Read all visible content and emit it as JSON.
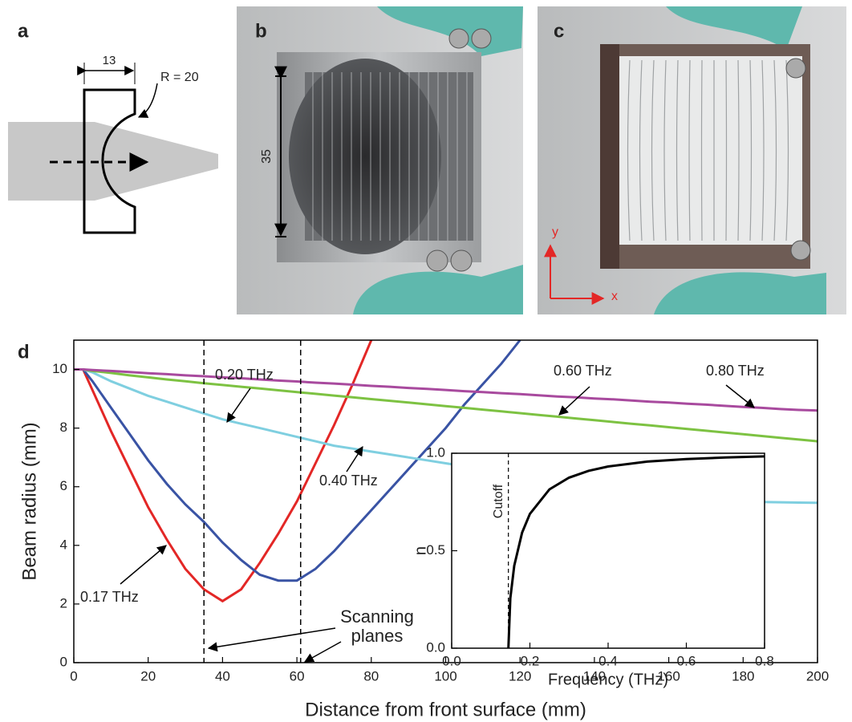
{
  "panel_labels": [
    "a",
    "b",
    "c",
    "d"
  ],
  "diagram": {
    "width_label": "13",
    "radius_label": "R = 20"
  },
  "photo_b": {
    "height_label": "35"
  },
  "photo_c": {
    "y_label": "y",
    "x_label": "x"
  },
  "chart_data": [
    {
      "type": "line",
      "xlabel": "Distance from front surface (mm)",
      "ylabel": "Beam radius (mm)",
      "xlim": [
        0,
        200
      ],
      "ylim": [
        0,
        11
      ],
      "xticks": [
        0,
        20,
        40,
        60,
        80,
        100,
        120,
        140,
        160,
        180,
        200
      ],
      "yticks": [
        0,
        2,
        4,
        6,
        8,
        10
      ],
      "x": [
        0,
        2.5,
        5,
        10,
        15,
        20,
        25,
        30,
        35,
        40,
        45,
        50,
        55,
        60,
        65,
        70,
        75,
        80,
        85,
        90,
        95,
        100,
        105,
        110,
        115,
        120,
        125,
        130,
        135,
        140,
        145,
        150,
        155,
        160,
        165,
        170,
        175,
        180,
        185,
        190,
        195,
        200
      ],
      "series": [
        {
          "name": "0.17 THz",
          "color": "#e32726",
          "values": [
            10,
            10,
            9.3,
            7.9,
            6.6,
            5.3,
            4.2,
            3.2,
            2.5,
            2.1,
            2.5,
            3.4,
            4.4,
            5.5,
            6.8,
            8.1,
            9.5,
            11.0,
            null,
            null,
            null,
            null,
            null,
            null,
            null,
            null,
            null,
            null,
            null,
            null,
            null,
            null,
            null,
            null,
            null,
            null,
            null,
            null,
            null,
            null,
            null,
            null
          ]
        },
        {
          "name": "0.20 THz",
          "color": "#3953a4",
          "values": [
            10,
            10,
            9.6,
            8.7,
            7.8,
            6.9,
            6.1,
            5.4,
            4.8,
            4.1,
            3.5,
            3.0,
            2.8,
            2.8,
            3.2,
            3.8,
            4.5,
            5.2,
            5.9,
            6.6,
            7.3,
            8.0,
            8.8,
            9.5,
            10.2,
            11.0,
            null,
            null,
            null,
            null,
            null,
            null,
            null,
            null,
            null,
            null,
            null,
            null,
            null,
            null,
            null,
            null
          ]
        },
        {
          "name": "0.40 THz",
          "color": "#7fcfe0",
          "values": [
            10,
            10,
            9.9,
            9.6,
            9.35,
            9.1,
            8.9,
            8.7,
            8.5,
            8.3,
            8.15,
            8.0,
            7.85,
            7.7,
            7.55,
            7.4,
            7.3,
            7.2,
            7.1,
            7.0,
            6.9,
            6.8,
            6.7,
            6.6,
            6.5,
            6.4,
            6.3,
            6.2,
            6.1,
            6.0,
            5.9,
            5.85,
            5.8,
            5.7,
            5.65,
            5.6,
            5.55,
            5.5,
            5.48,
            5.47,
            5.46,
            5.45
          ]
        },
        {
          "name": "0.60 THz",
          "color": "#7dc242",
          "values": [
            10,
            10,
            9.95,
            9.88,
            9.8,
            9.73,
            9.66,
            9.6,
            9.53,
            9.47,
            9.41,
            9.35,
            9.29,
            9.23,
            9.17,
            9.11,
            9.05,
            8.99,
            8.93,
            8.87,
            8.81,
            8.75,
            8.69,
            8.63,
            8.57,
            8.51,
            8.45,
            8.39,
            8.33,
            8.27,
            8.21,
            8.15,
            8.09,
            8.03,
            7.97,
            7.91,
            7.85,
            7.79,
            7.73,
            7.67,
            7.61,
            7.55
          ]
        },
        {
          "name": "0.80 THz",
          "color": "#a84a9e",
          "values": [
            10,
            10,
            9.98,
            9.95,
            9.91,
            9.87,
            9.84,
            9.8,
            9.77,
            9.73,
            9.7,
            9.66,
            9.62,
            9.59,
            9.55,
            9.52,
            9.48,
            9.44,
            9.41,
            9.37,
            9.34,
            9.3,
            9.26,
            9.23,
            9.19,
            9.16,
            9.12,
            9.08,
            9.05,
            9.01,
            8.98,
            8.94,
            8.9,
            8.87,
            8.83,
            8.8,
            8.76,
            8.72,
            8.69,
            8.65,
            8.62,
            8.6
          ]
        }
      ],
      "scanning_planes": {
        "lines": [
          "Scanning",
          "planes"
        ],
        "x": [
          35,
          61
        ]
      }
    },
    {
      "type": "line",
      "xlabel": "Frequency (THz)",
      "ylabel": "n",
      "xlim": [
        0,
        0.8
      ],
      "ylim": [
        0,
        1
      ],
      "xticks": [
        {
          "value": 0,
          "label": "0.0"
        },
        0.2,
        0.4,
        0.6,
        0.8
      ],
      "yticks": [
        {
          "value": 0,
          "label": "0.0"
        },
        0.5,
        {
          "value": 1,
          "label": "1.0"
        }
      ],
      "x": [
        0.145,
        0.15,
        0.16,
        0.18,
        0.2,
        0.25,
        0.3,
        0.35,
        0.4,
        0.5,
        0.6,
        0.7,
        0.8
      ],
      "series": [
        {
          "color": "#000000",
          "values": [
            0,
            0.256,
            0.423,
            0.593,
            0.689,
            0.815,
            0.875,
            0.91,
            0.932,
            0.957,
            0.97,
            0.978,
            0.984
          ]
        }
      ],
      "cutoff": {
        "label": "Cutoff",
        "x": 0.145
      }
    }
  ]
}
